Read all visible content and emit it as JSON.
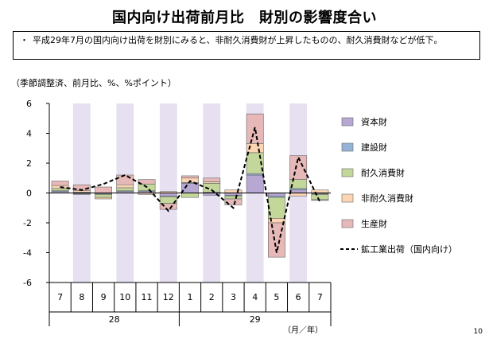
{
  "page": {
    "title": "国内向け出荷前月比　財別の影響度合い",
    "note": "平成29年7月の国内向け出荷を財別にみると、非耐久消費財が上昇したものの、耐久消費財などが低下。",
    "unit": "（季節調整済、前月比、%、%ポイント）",
    "page_number": "10"
  },
  "chart_data": {
    "type": "bar",
    "stacked": true,
    "categories": [
      "7",
      "8",
      "9",
      "10",
      "11",
      "12",
      "1",
      "2",
      "3",
      "4",
      "5",
      "6",
      "7"
    ],
    "year_labels": [
      {
        "label": "28",
        "from": 0,
        "to": 5
      },
      {
        "label": "29",
        "from": 6,
        "to": 12
      }
    ],
    "x_unit_label": "（月／年）",
    "ylim": [
      -6,
      6
    ],
    "yticks": [
      6,
      4,
      2,
      0,
      -2,
      -4,
      -6
    ],
    "shaded_categories": [
      1,
      3,
      5,
      7,
      9,
      11
    ],
    "colors": {
      "shade": "#e6e0f0",
      "capital": "#b7a7d3",
      "construction": "#95b3d7",
      "durable": "#c4d79b",
      "nondurable": "#fcd5b4",
      "production": "#e6b9b8",
      "line": "#000000"
    },
    "series": [
      {
        "key": "capital",
        "name": "資本財",
        "values": [
          0.1,
          -0.05,
          -0.05,
          0.1,
          0.1,
          -0.2,
          0.65,
          -0.15,
          -0.15,
          1.2,
          -0.2,
          0.2,
          -0.05
        ]
      },
      {
        "key": "construction",
        "name": "建設財",
        "values": [
          0.05,
          -0.05,
          -0.05,
          0.05,
          0.05,
          -0.05,
          0.05,
          0.05,
          -0.05,
          0.1,
          -0.1,
          0.1,
          -0.05
        ]
      },
      {
        "key": "durable",
        "name": "耐久消費財",
        "values": [
          0.15,
          0.05,
          -0.2,
          0.2,
          0.45,
          -0.45,
          -0.3,
          0.6,
          -0.2,
          1.4,
          -1.4,
          0.6,
          -0.35
        ]
      },
      {
        "key": "nondurable",
        "name": "非耐久消費財",
        "values": [
          0.2,
          0.1,
          -0.1,
          0.2,
          -0.1,
          0.1,
          0.3,
          0.1,
          0.2,
          0.6,
          -0.3,
          -0.2,
          0.2
        ]
      },
      {
        "key": "production",
        "name": "生産財",
        "values": [
          0.3,
          0.4,
          0.4,
          0.65,
          0.3,
          -0.4,
          0.15,
          0.25,
          -0.4,
          2.0,
          -2.3,
          1.6,
          -0.05
        ]
      }
    ],
    "line": {
      "name": "鉱工業出荷（国内向け）",
      "values": [
        0.4,
        0.2,
        0.6,
        1.2,
        0.4,
        -1.2,
        0.8,
        0.2,
        -1.0,
        4.4,
        -4.0,
        2.4,
        -0.6
      ]
    },
    "legend": {
      "position": "right",
      "items": [
        {
          "key": "capital",
          "label": "資本財"
        },
        {
          "key": "construction",
          "label": "建設財"
        },
        {
          "key": "durable",
          "label": "耐久消費財"
        },
        {
          "key": "nondurable",
          "label": "非耐久消費財"
        },
        {
          "key": "production",
          "label": "生産財"
        },
        {
          "key": "line",
          "label": "鉱工業出荷（国内向け）"
        }
      ]
    }
  }
}
